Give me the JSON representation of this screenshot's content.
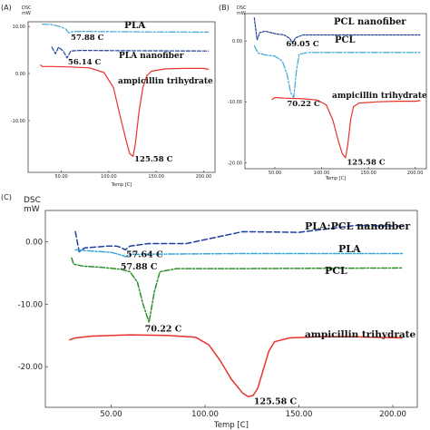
{
  "chart_data": [
    {
      "panel": "(A)",
      "type": "line",
      "ylabel_top": "DSC",
      "ylabel_unit": "mW",
      "xlabel": "Temp [C]",
      "xlim": [
        15,
        212
      ],
      "ylim": [
        -21,
        11
      ],
      "xticks": [
        50,
        100,
        150,
        200
      ],
      "xtick_labels": [
        "50.00",
        "100.00",
        "150.00",
        "200.00"
      ],
      "yticks": [
        10,
        0,
        -10
      ],
      "ytick_labels": [
        "10.00",
        "0.00",
        "-10.00"
      ],
      "grid": false,
      "series": [
        {
          "name": "PLA",
          "color": "#3aa7d8",
          "dash": "7 2 2 2",
          "points": [
            [
              30,
              10.5
            ],
            [
              40,
              10.4
            ],
            [
              50,
              9.9
            ],
            [
              55,
              9.4
            ],
            [
              58,
              8.6
            ],
            [
              61,
              8.9
            ],
            [
              70,
              8.95
            ],
            [
              100,
              8.9
            ],
            [
              150,
              8.85
            ],
            [
              205,
              8.8
            ]
          ]
        },
        {
          "name": "PLA nanofiber",
          "color": "#1f3f9e",
          "dash": "4 2",
          "points": [
            [
              40,
              5.6
            ],
            [
              44,
              4.2
            ],
            [
              47,
              5.6
            ],
            [
              52,
              4.8
            ],
            [
              56,
              3.3
            ],
            [
              60,
              4.8
            ],
            [
              70,
              4.9
            ],
            [
              120,
              4.85
            ],
            [
              205,
              4.8
            ]
          ]
        },
        {
          "name": "ampicillin trihydrate",
          "color": "#e8332a",
          "dash": "",
          "points": [
            [
              28,
              1.8
            ],
            [
              30,
              1.5
            ],
            [
              40,
              1.5
            ],
            [
              60,
              1.4
            ],
            [
              80,
              1.2
            ],
            [
              95,
              0.2
            ],
            [
              105,
              -3
            ],
            [
              112,
              -9
            ],
            [
              118,
              -14
            ],
            [
              122,
              -17
            ],
            [
              125.6,
              -17.6
            ],
            [
              128,
              -15
            ],
            [
              132,
              -8
            ],
            [
              136,
              -3
            ],
            [
              140,
              -0.5
            ],
            [
              145,
              0.5
            ],
            [
              160,
              1.0
            ],
            [
              180,
              1.1
            ],
            [
              200,
              1.1
            ],
            [
              205,
              0.9
            ]
          ]
        }
      ],
      "annotations": [
        {
          "text": "57.88 C",
          "x": 60,
          "y": 7.1
        },
        {
          "text": "56.14 C",
          "x": 57,
          "y": 1.9
        },
        {
          "text": "125.58 C",
          "x": 127,
          "y": -18.7
        }
      ]
    },
    {
      "panel": "(B)",
      "type": "line",
      "ylabel_top": "DSC",
      "ylabel_unit": "mW",
      "xlabel": "Temp [C]",
      "xlim": [
        18,
        212
      ],
      "ylim": [
        -21,
        4.5
      ],
      "xticks": [
        50,
        100,
        150,
        200
      ],
      "xtick_labels": [
        "50.00",
        "100.00",
        "150.00",
        "200.00"
      ],
      "yticks": [
        0,
        -10,
        -20
      ],
      "ytick_labels": [
        "0.00",
        "-10.00",
        "-20.00"
      ],
      "grid": false,
      "series": [
        {
          "name": "PCL nanofiber",
          "color": "#1f3f9e",
          "dash": "2.5 1.5",
          "points": [
            [
              28,
              3.8
            ],
            [
              31,
              0.2
            ],
            [
              34,
              1.4
            ],
            [
              40,
              1.6
            ],
            [
              50,
              1.2
            ],
            [
              60,
              1.0
            ],
            [
              66,
              0.4
            ],
            [
              69,
              -0.3
            ],
            [
              72,
              0.5
            ],
            [
              80,
              1.0
            ],
            [
              120,
              1.0
            ],
            [
              205,
              1.0
            ]
          ]
        },
        {
          "name": "PCL",
          "color": "#3aa7d8",
          "dash": "7 2 2 2",
          "points": [
            [
              28,
              -0.8
            ],
            [
              32,
              -2.0
            ],
            [
              40,
              -2.3
            ],
            [
              50,
              -2.5
            ],
            [
              58,
              -3.3
            ],
            [
              63,
              -5.5
            ],
            [
              67,
              -8.5
            ],
            [
              70.2,
              -9.3
            ],
            [
              73,
              -5
            ],
            [
              76,
              -2.2
            ],
            [
              85,
              -1.9
            ],
            [
              120,
              -1.9
            ],
            [
              205,
              -1.9
            ]
          ]
        },
        {
          "name": "ampicillin trihydrate",
          "color": "#e8332a",
          "dash": "",
          "points": [
            [
              47,
              -9.6
            ],
            [
              50,
              -9.3
            ],
            [
              60,
              -9.4
            ],
            [
              80,
              -9.5
            ],
            [
              95,
              -9.7
            ],
            [
              105,
              -10.5
            ],
            [
              112,
              -13
            ],
            [
              118,
              -16.5
            ],
            [
              122,
              -18.5
            ],
            [
              125.6,
              -19.2
            ],
            [
              128,
              -17
            ],
            [
              131,
              -13
            ],
            [
              134,
              -10.8
            ],
            [
              140,
              -10.2
            ],
            [
              160,
              -10.0
            ],
            [
              180,
              -9.9
            ],
            [
              200,
              -9.9
            ],
            [
              205,
              -9.8
            ]
          ]
        }
      ],
      "annotations": [
        {
          "text": "69.05 C",
          "x": 62,
          "y": -0.9
        },
        {
          "text": "70.22 C",
          "x": 63,
          "y": -10.7
        },
        {
          "text": "125.58 C",
          "x": 127,
          "y": -20.3
        }
      ]
    },
    {
      "panel": "(C)",
      "type": "line",
      "ylabel_top": "DSC",
      "ylabel_unit": "mW",
      "xlabel": "Temp [C]",
      "xlim": [
        15,
        213
      ],
      "ylim": [
        -26.5,
        5
      ],
      "xticks": [
        50,
        100,
        150,
        200
      ],
      "xtick_labels": [
        "50.00",
        "100.00",
        "150.00",
        "200.00"
      ],
      "yticks": [
        0,
        -10,
        -20
      ],
      "ytick_labels": [
        "0.00",
        "-10.00",
        "-20.00"
      ],
      "grid": false,
      "series": [
        {
          "name": "PLA:PCL nanofiber",
          "color": "#1f3f9e",
          "dash": "6 3",
          "points": [
            [
              31,
              1.6
            ],
            [
              33,
              -1.6
            ],
            [
              36,
              -1.0
            ],
            [
              40,
              -0.9
            ],
            [
              48,
              -0.7
            ],
            [
              53,
              -0.7
            ],
            [
              55,
              -0.9
            ],
            [
              57.6,
              -1.3
            ],
            [
              60,
              -0.7
            ],
            [
              70,
              -0.3
            ],
            [
              90,
              -0.3
            ],
            [
              120,
              1.6
            ],
            [
              150,
              1.5
            ],
            [
              180,
              2.6
            ],
            [
              205,
              2.5
            ]
          ]
        },
        {
          "name": "PLA",
          "color": "#3aa7d8",
          "dash": "7 2 2 2",
          "points": [
            [
              31,
              -1.3
            ],
            [
              40,
              -1.5
            ],
            [
              50,
              -1.7
            ],
            [
              55,
              -2.1
            ],
            [
              57.9,
              -2.4
            ],
            [
              60,
              -2.0
            ],
            [
              70,
              -2.0
            ],
            [
              120,
              -1.9
            ],
            [
              205,
              -1.9
            ]
          ]
        },
        {
          "name": "PCL",
          "color": "#2f8f2a",
          "dash": "6 2 2 2",
          "points": [
            [
              29,
              -2.6
            ],
            [
              30,
              -3.6
            ],
            [
              35,
              -3.9
            ],
            [
              45,
              -4.1
            ],
            [
              55,
              -4.4
            ],
            [
              60,
              -4.8
            ],
            [
              64,
              -6.5
            ],
            [
              67,
              -10
            ],
            [
              70.2,
              -12.9
            ],
            [
              73,
              -8
            ],
            [
              76,
              -4.8
            ],
            [
              85,
              -4.3
            ],
            [
              120,
              -4.3
            ],
            [
              205,
              -4.2
            ]
          ]
        },
        {
          "name": "ampicillin trihydrate",
          "color": "#e8332a",
          "dash": "",
          "points": [
            [
              28,
              -15.7
            ],
            [
              31,
              -15.4
            ],
            [
              40,
              -15.1
            ],
            [
              60,
              -14.9
            ],
            [
              80,
              -15.0
            ],
            [
              95,
              -15.3
            ],
            [
              102,
              -16.5
            ],
            [
              108,
              -19
            ],
            [
              114,
              -22
            ],
            [
              120,
              -24.2
            ],
            [
              123,
              -24.8
            ],
            [
              125.6,
              -24.6
            ],
            [
              128,
              -23.5
            ],
            [
              131,
              -20.5
            ],
            [
              134,
              -17.5
            ],
            [
              137,
              -16
            ],
            [
              145,
              -15.4
            ],
            [
              160,
              -15.2
            ],
            [
              180,
              -15.2
            ],
            [
              205,
              -15.4
            ]
          ]
        }
      ],
      "annotations": [
        {
          "text": "57.64 C",
          "x": 58,
          "y": -2.5
        },
        {
          "text": "57.88 C",
          "x": 55,
          "y": -4.4
        },
        {
          "text": "70.22 C",
          "x": 68,
          "y": -14.4
        },
        {
          "text": "125.58 C",
          "x": 126,
          "y": -26.0
        }
      ]
    }
  ]
}
